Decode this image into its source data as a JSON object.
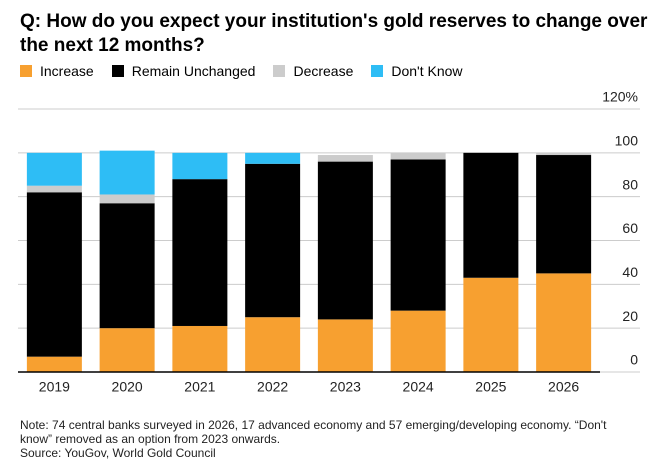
{
  "chart_data": {
    "type": "stacked_bar",
    "title": "Q: How do you expect your institution's gold reserves to change over the next 12 months?",
    "categories": [
      "2019",
      "2020",
      "2021",
      "2022",
      "2023",
      "2024",
      "2025",
      "2026"
    ],
    "series": [
      {
        "name": "Increase",
        "color": "#f7a030",
        "values": [
          7,
          20,
          21,
          25,
          24,
          28,
          43,
          45
        ]
      },
      {
        "name": "Remain Unchanged",
        "color": "#000000",
        "values": [
          75,
          57,
          67,
          70,
          72,
          69,
          57,
          54
        ]
      },
      {
        "name": "Decrease",
        "color": "#cccccc",
        "values": [
          3,
          4,
          0,
          0,
          3,
          3,
          0,
          1
        ]
      },
      {
        "name": "Don't Know",
        "color": "#2ebdf5",
        "values": [
          15,
          20,
          12,
          5,
          null,
          null,
          null,
          null
        ]
      }
    ],
    "ylim": [
      0,
      120
    ],
    "yticks": [
      0,
      20,
      40,
      60,
      80,
      100,
      {
        "value": 120,
        "label": "120%"
      }
    ],
    "grid": true,
    "note": "Note: 74 central banks surveyed in 2026, 17 advanced economy and 57 emerging/developing economy. “Don't know” removed as an option from 2023 onwards.",
    "source": "Source: YouGov, World Gold Council"
  }
}
